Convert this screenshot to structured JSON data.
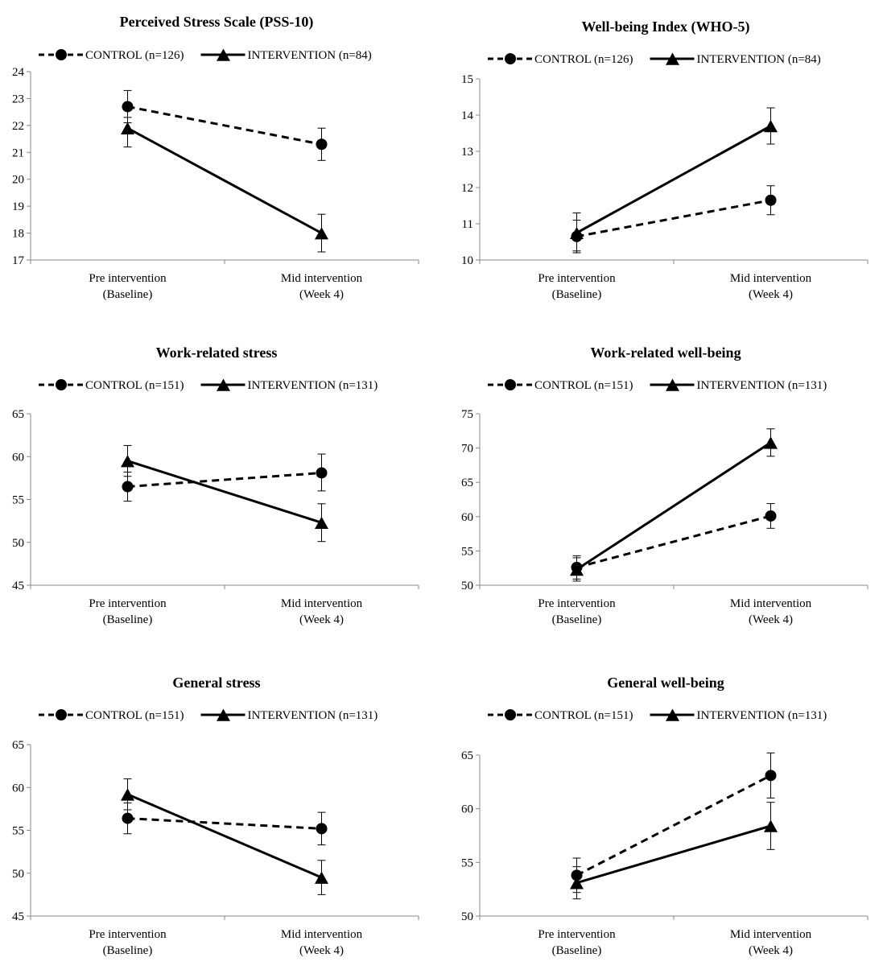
{
  "figure": {
    "categories": [
      "Pre intervention\n(Baseline)",
      "Mid intervention\n(Week 4)"
    ]
  },
  "chart_data": [
    {
      "type": "line",
      "title": "Perceived Stress Scale (PSS-10)",
      "categories": [
        "Pre intervention (Baseline)",
        "Mid intervention (Week 4)"
      ],
      "ylim": [
        17,
        24
      ],
      "yticks": [
        17,
        18,
        19,
        20,
        21,
        22,
        23,
        24
      ],
      "legend": "top",
      "series": [
        {
          "name": "CONTROL (n=126)",
          "style": "dashed",
          "marker": "circle",
          "values": [
            22.7,
            21.3
          ],
          "err_low": [
            22.1,
            20.7
          ],
          "err_high": [
            23.3,
            21.9
          ]
        },
        {
          "name": "INTERVENTION (n=84)",
          "style": "solid",
          "marker": "triangle",
          "values": [
            21.9,
            18.0
          ],
          "err_low": [
            21.2,
            17.3
          ],
          "err_high": [
            22.3,
            18.7
          ]
        }
      ]
    },
    {
      "type": "line",
      "title": "Well-being Index (WHO-5)",
      "categories": [
        "Pre intervention (Baseline)",
        "Mid intervention (Week 4)"
      ],
      "ylim": [
        10,
        15
      ],
      "yticks": [
        10,
        11,
        12,
        13,
        14,
        15
      ],
      "legend": "top",
      "series": [
        {
          "name": "CONTROL (n=126)",
          "style": "dashed",
          "marker": "circle",
          "values": [
            10.65,
            11.65
          ],
          "err_low": [
            10.2,
            11.25
          ],
          "err_high": [
            11.1,
            12.05
          ]
        },
        {
          "name": "INTERVENTION (n=84)",
          "style": "solid",
          "marker": "triangle",
          "values": [
            10.75,
            13.7
          ],
          "err_low": [
            10.25,
            13.2
          ],
          "err_high": [
            11.3,
            14.2
          ]
        }
      ]
    },
    {
      "type": "line",
      "title": "Work-related stress",
      "categories": [
        "Pre intervention (Baseline)",
        "Mid intervention (Week 4)"
      ],
      "ylim": [
        45,
        65
      ],
      "yticks": [
        45,
        50,
        55,
        60,
        65
      ],
      "legend": "top",
      "series": [
        {
          "name": "CONTROL (n=151)",
          "style": "dashed",
          "marker": "circle",
          "values": [
            56.5,
            58.1
          ],
          "err_low": [
            54.8,
            56.0
          ],
          "err_high": [
            58.2,
            60.3
          ]
        },
        {
          "name": "INTERVENTION (n=131)",
          "style": "solid",
          "marker": "triangle",
          "values": [
            59.5,
            52.3
          ],
          "err_low": [
            57.7,
            50.1
          ],
          "err_high": [
            61.3,
            54.5
          ]
        }
      ]
    },
    {
      "type": "line",
      "title": "Work-related well-being",
      "categories": [
        "Pre intervention (Baseline)",
        "Mid intervention (Week 4)"
      ],
      "ylim": [
        50,
        75
      ],
      "yticks": [
        50,
        55,
        60,
        65,
        70,
        75
      ],
      "legend": "top",
      "series": [
        {
          "name": "CONTROL (n=151)",
          "style": "dashed",
          "marker": "circle",
          "values": [
            52.6,
            60.1
          ],
          "err_low": [
            50.9,
            58.3
          ],
          "err_high": [
            54.3,
            61.9
          ]
        },
        {
          "name": "INTERVENTION (n=131)",
          "style": "solid",
          "marker": "triangle",
          "values": [
            52.3,
            70.8
          ],
          "err_low": [
            50.6,
            68.8
          ],
          "err_high": [
            54.0,
            72.8
          ]
        }
      ]
    },
    {
      "type": "line",
      "title": "General stress",
      "categories": [
        "Pre intervention (Baseline)",
        "Mid intervention (Week 4)"
      ],
      "ylim": [
        45,
        65
      ],
      "yticks": [
        45,
        50,
        55,
        60,
        65
      ],
      "legend": "top",
      "series": [
        {
          "name": "CONTROL (n=151)",
          "style": "dashed",
          "marker": "circle",
          "values": [
            56.4,
            55.2
          ],
          "err_low": [
            54.6,
            53.3
          ],
          "err_high": [
            58.2,
            57.1
          ]
        },
        {
          "name": "INTERVENTION (n=131)",
          "style": "solid",
          "marker": "triangle",
          "values": [
            59.2,
            49.5
          ],
          "err_low": [
            57.4,
            47.5
          ],
          "err_high": [
            61.0,
            51.5
          ]
        }
      ]
    },
    {
      "type": "line",
      "title": "General well-being",
      "categories": [
        "Pre intervention (Baseline)",
        "Mid intervention (Week 4)"
      ],
      "ylim": [
        50,
        65
      ],
      "yticks": [
        50,
        55,
        60,
        65
      ],
      "legend": "top",
      "series": [
        {
          "name": "CONTROL (n=151)",
          "style": "dashed",
          "marker": "circle",
          "values": [
            53.8,
            63.1
          ],
          "err_low": [
            52.2,
            61.0
          ],
          "err_high": [
            55.4,
            65.2
          ]
        },
        {
          "name": "INTERVENTION (n=131)",
          "style": "solid",
          "marker": "triangle",
          "values": [
            53.1,
            58.4
          ],
          "err_low": [
            51.6,
            56.2
          ],
          "err_high": [
            54.6,
            60.6
          ]
        }
      ]
    }
  ]
}
